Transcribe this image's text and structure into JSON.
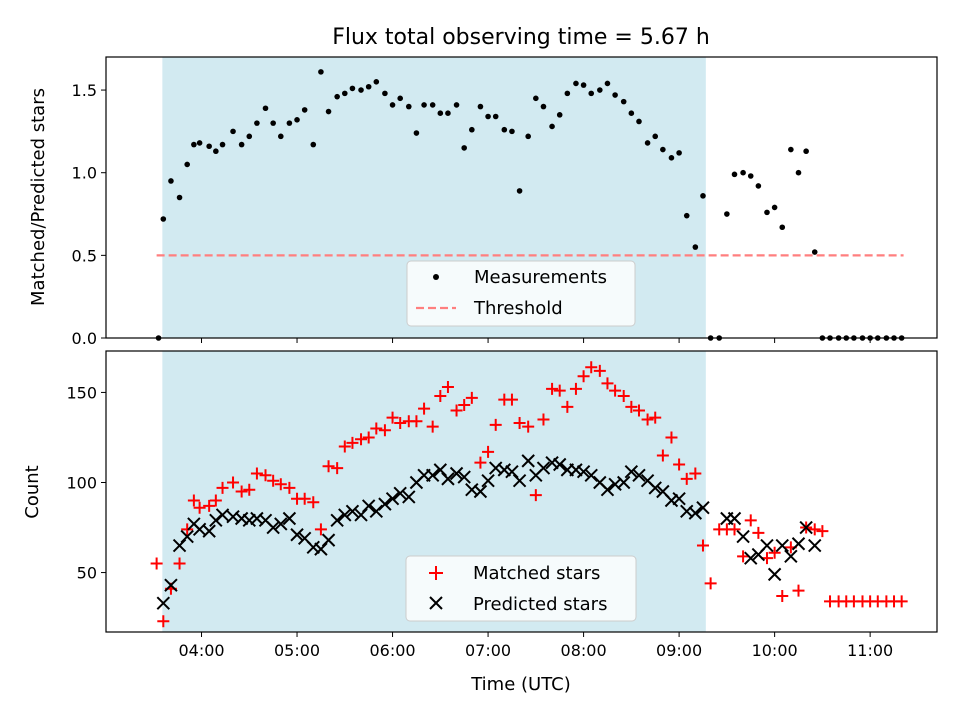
{
  "chart_data": {
    "title": "Flux total observing time = 5.67 h",
    "xlabel": "Time (UTC)",
    "x_unit": "hours UTC",
    "xlim": [
      3.0,
      11.7
    ],
    "xticks": [
      4,
      5,
      6,
      7,
      8,
      9,
      10,
      11
    ],
    "xtick_labels": [
      "04:00",
      "05:00",
      "06:00",
      "07:00",
      "08:00",
      "09:00",
      "10:00",
      "11:00"
    ],
    "shaded_interval": [
      3.59,
      9.28
    ],
    "shade_color": "#add8e6",
    "panels": [
      {
        "type": "scatter",
        "ylabel": "Matched/Predicted stars",
        "ylim": [
          0,
          1.7
        ],
        "yticks": [
          0.0,
          0.5,
          1.0,
          1.5
        ],
        "ytick_labels": [
          "0.0",
          "0.5",
          "1.0",
          "1.5"
        ],
        "legend_placement": "lower-center",
        "series": [
          {
            "name": "Measurements",
            "marker": "dot",
            "color": "#000000",
            "x": [
              3.55,
              3.6,
              3.68,
              3.77,
              3.85,
              3.92,
              3.98,
              4.08,
              4.15,
              4.22,
              4.33,
              4.42,
              4.5,
              4.58,
              4.67,
              4.75,
              4.83,
              4.92,
              5.0,
              5.08,
              5.17,
              5.25,
              5.33,
              5.42,
              5.5,
              5.58,
              5.67,
              5.75,
              5.83,
              5.92,
              6.0,
              6.08,
              6.17,
              6.25,
              6.33,
              6.42,
              6.5,
              6.58,
              6.67,
              6.75,
              6.83,
              6.92,
              7.0,
              7.08,
              7.17,
              7.25,
              7.33,
              7.42,
              7.5,
              7.58,
              7.67,
              7.75,
              7.83,
              7.92,
              8.0,
              8.08,
              8.17,
              8.25,
              8.33,
              8.42,
              8.5,
              8.58,
              8.67,
              8.75,
              8.83,
              8.92,
              9.0,
              9.08,
              9.17,
              9.25,
              9.33,
              9.42,
              9.5,
              9.58,
              9.67,
              9.75,
              9.83,
              9.92,
              10.0,
              10.08,
              10.17,
              10.25,
              10.33,
              10.42,
              10.5,
              10.58,
              10.67,
              10.75,
              10.83,
              10.92,
              11.0,
              11.08,
              11.17,
              11.25,
              11.33
            ],
            "y": [
              0.0,
              0.72,
              0.95,
              0.85,
              1.05,
              1.17,
              1.18,
              1.16,
              1.13,
              1.17,
              1.25,
              1.17,
              1.22,
              1.3,
              1.39,
              1.3,
              1.22,
              1.3,
              1.32,
              1.38,
              1.17,
              1.61,
              1.37,
              1.46,
              1.48,
              1.51,
              1.5,
              1.52,
              1.55,
              1.48,
              1.41,
              1.45,
              1.4,
              1.24,
              1.41,
              1.41,
              1.36,
              1.36,
              1.41,
              1.15,
              1.26,
              1.4,
              1.34,
              1.34,
              1.26,
              1.25,
              0.89,
              1.22,
              1.45,
              1.4,
              1.28,
              1.35,
              1.48,
              1.54,
              1.53,
              1.48,
              1.5,
              1.54,
              1.47,
              1.43,
              1.36,
              1.31,
              1.18,
              1.22,
              1.14,
              1.09,
              1.12,
              0.74,
              0.55,
              0.86,
              0.0,
              0.0,
              0.75,
              0.99,
              1.0,
              0.98,
              0.92,
              0.76,
              0.79,
              0.67,
              1.14,
              1.0,
              1.13,
              0.52,
              0.0,
              0.0,
              0.0,
              0.0,
              0.0,
              0.0,
              0.0,
              0.0,
              0.0,
              0.0,
              0.0
            ]
          },
          {
            "name": "Threshold",
            "marker": "dashed-line",
            "color": "#ff7f7f",
            "x": [
              3.53,
              11.35
            ],
            "y": [
              0.5,
              0.5
            ]
          }
        ]
      },
      {
        "type": "scatter",
        "ylabel": "Count",
        "ylim": [
          17,
          173
        ],
        "yticks": [
          50,
          100,
          150
        ],
        "ytick_labels": [
          "50",
          "100",
          "150"
        ],
        "legend_placement": "lower-center",
        "series": [
          {
            "name": "Matched stars",
            "marker": "plus",
            "color": "#ff0000",
            "x": [
              3.53,
              3.6,
              3.68,
              3.77,
              3.85,
              3.92,
              3.98,
              4.08,
              4.15,
              4.22,
              4.33,
              4.42,
              4.5,
              4.58,
              4.67,
              4.75,
              4.83,
              4.92,
              5.0,
              5.08,
              5.17,
              5.25,
              5.33,
              5.42,
              5.5,
              5.58,
              5.67,
              5.75,
              5.83,
              5.92,
              6.0,
              6.08,
              6.17,
              6.25,
              6.33,
              6.42,
              6.5,
              6.58,
              6.67,
              6.75,
              6.83,
              6.92,
              7.0,
              7.08,
              7.17,
              7.25,
              7.33,
              7.42,
              7.5,
              7.58,
              7.67,
              7.75,
              7.83,
              7.92,
              8.0,
              8.08,
              8.17,
              8.25,
              8.33,
              8.42,
              8.5,
              8.58,
              8.67,
              8.75,
              8.83,
              8.92,
              9.0,
              9.08,
              9.17,
              9.25,
              9.33,
              9.42,
              9.5,
              9.58,
              9.67,
              9.75,
              9.83,
              9.92,
              10.0,
              10.08,
              10.17,
              10.25,
              10.33,
              10.42,
              10.5,
              10.58,
              10.67,
              10.75,
              10.83,
              10.92,
              11.0,
              11.08,
              11.17,
              11.25,
              11.33
            ],
            "y": [
              55,
              23,
              41,
              55,
              74,
              90,
              86,
              87,
              90,
              97,
              100,
              95,
              96,
              105,
              104,
              101,
              99,
              97,
              91,
              91,
              89,
              74,
              109,
              108,
              120,
              122,
              124,
              125,
              130,
              129,
              136,
              133,
              134,
              134,
              141,
              131,
              148,
              153,
              140,
              143,
              147,
              111,
              117,
              132,
              146,
              146,
              133,
              131,
              93,
              135,
              152,
              151,
              142,
              152,
              159,
              164,
              162,
              155,
              151,
              148,
              142,
              140,
              135,
              136,
              115,
              125,
              110,
              102,
              105,
              65,
              44,
              74,
              74,
              74,
              59,
              79,
              72,
              58,
              61,
              37,
              64,
              40,
              75,
              74,
              73,
              34,
              34,
              34,
              34,
              34,
              34,
              34,
              34,
              34,
              34
            ]
          },
          {
            "name": "Predicted stars",
            "marker": "x",
            "color": "#000000",
            "x": [
              3.6,
              3.68,
              3.77,
              3.85,
              3.92,
              3.98,
              4.08,
              4.15,
              4.22,
              4.33,
              4.42,
              4.5,
              4.58,
              4.67,
              4.75,
              4.83,
              4.92,
              5.0,
              5.08,
              5.17,
              5.25,
              5.33,
              5.42,
              5.5,
              5.58,
              5.67,
              5.75,
              5.83,
              5.92,
              6.0,
              6.08,
              6.17,
              6.25,
              6.33,
              6.42,
              6.5,
              6.58,
              6.67,
              6.75,
              6.83,
              6.92,
              7.0,
              7.08,
              7.17,
              7.25,
              7.33,
              7.42,
              7.5,
              7.58,
              7.67,
              7.75,
              7.83,
              7.92,
              8.0,
              8.08,
              8.17,
              8.25,
              8.33,
              8.42,
              8.5,
              8.58,
              8.67,
              8.75,
              8.83,
              8.92,
              9.0,
              9.08,
              9.17,
              9.25,
              9.5,
              9.58,
              9.67,
              9.75,
              9.83,
              9.92,
              10.0,
              10.08,
              10.17,
              10.25,
              10.33,
              10.42
            ],
            "y": [
              33,
              43,
              65,
              70,
              77,
              74,
              73,
              79,
              82,
              81,
              80,
              79,
              80,
              79,
              75,
              77,
              80,
              71,
              69,
              64,
              63,
              68,
              79,
              82,
              84,
              82,
              87,
              84,
              88,
              91,
              94,
              92,
              100,
              104,
              104,
              107,
              102,
              105,
              103,
              96,
              95,
              101,
              108,
              107,
              106,
              101,
              112,
              104,
              108,
              111,
              110,
              107,
              107,
              106,
              104,
              100,
              96,
              99,
              100,
              106,
              104,
              101,
              97,
              95,
              90,
              91,
              84,
              83,
              86,
              80,
              80,
              70,
              58,
              60,
              65,
              49,
              65,
              59,
              66,
              75,
              65
            ]
          }
        ]
      }
    ]
  }
}
